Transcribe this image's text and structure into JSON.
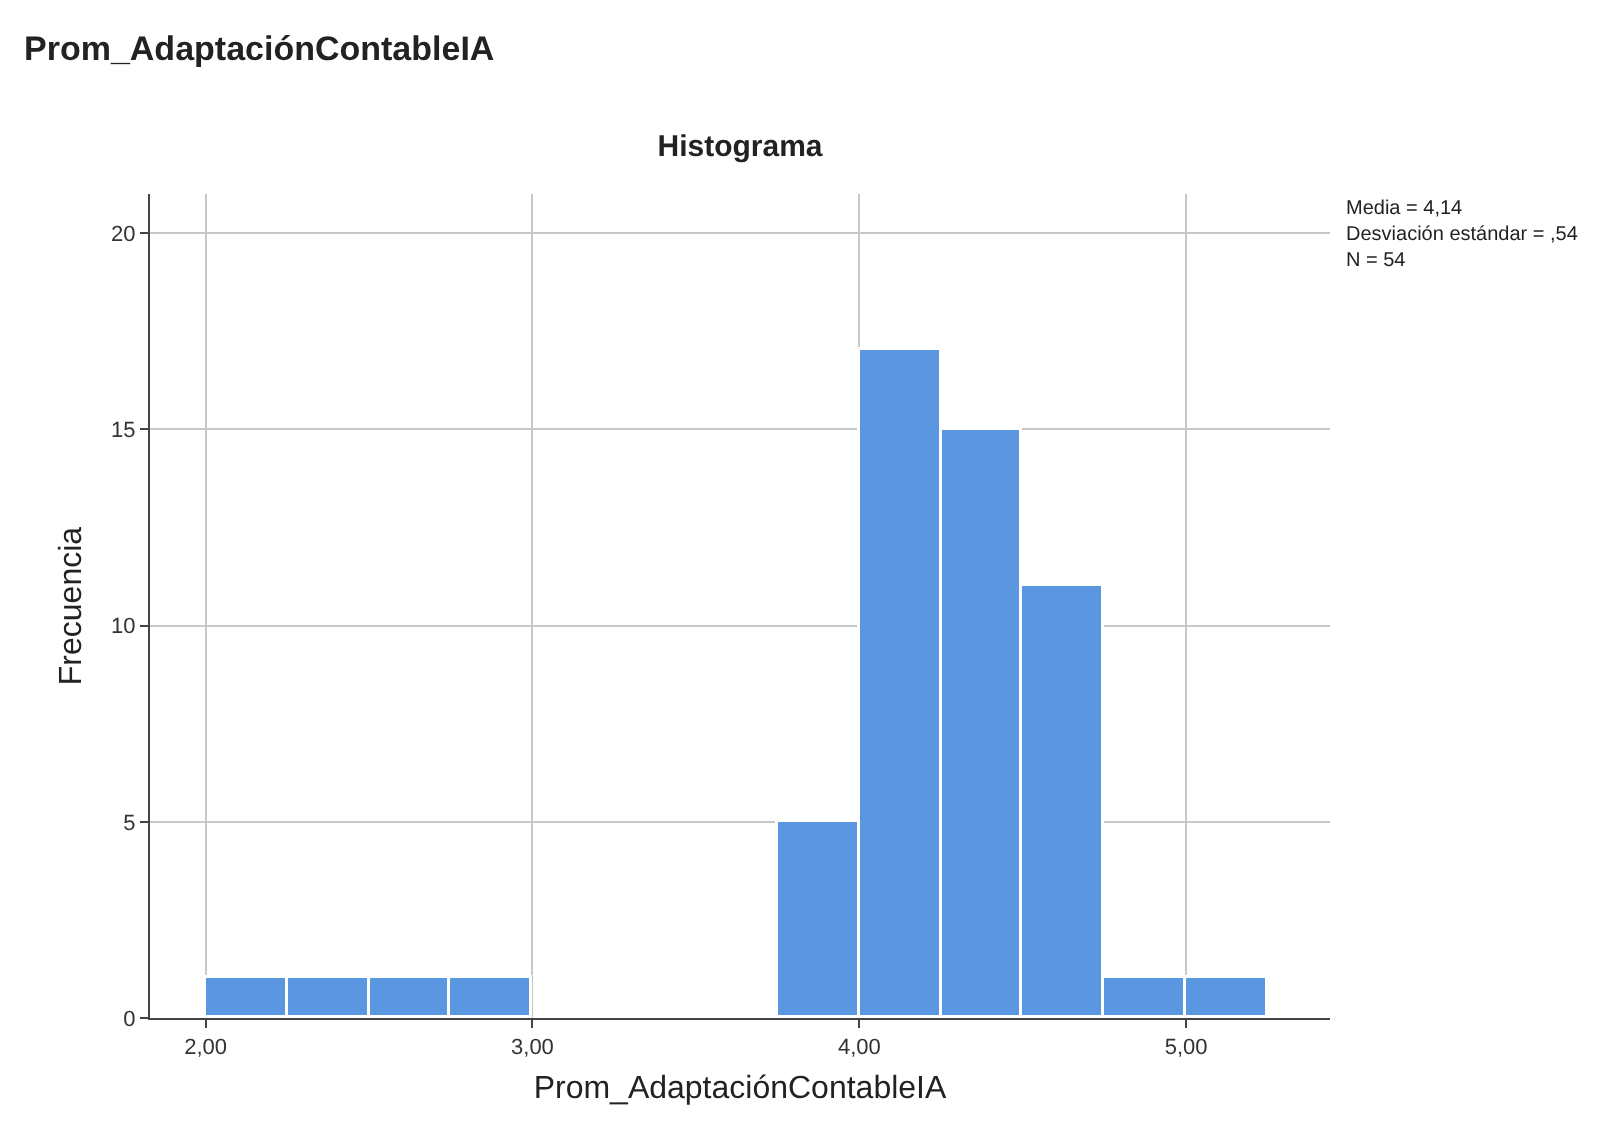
{
  "chart_data": {
    "type": "histogram",
    "title": "Histograma",
    "subtitle": "Prom_AdaptaciónContableIA",
    "xlabel": "Prom_AdaptaciónContableIA",
    "ylabel": "Frecuencia",
    "bins": [
      2.0,
      2.25,
      2.5,
      2.75,
      3.0,
      3.25,
      3.5,
      3.75,
      4.0,
      4.25,
      4.5,
      4.75,
      5.0,
      5.25
    ],
    "values": [
      1,
      1,
      1,
      1,
      0,
      0,
      0,
      5,
      17,
      15,
      11,
      1,
      1
    ],
    "color": "#5b96e0",
    "xlim": [
      1.83,
      5.44
    ],
    "ylim": [
      0,
      21
    ],
    "xticks": [
      {
        "value": 2,
        "label": "2,00"
      },
      {
        "value": 3,
        "label": "3,00"
      },
      {
        "value": 4,
        "label": "4,00"
      },
      {
        "value": 5,
        "label": "5,00"
      }
    ],
    "yticks": [
      0,
      5,
      10,
      15,
      20
    ],
    "grid": true,
    "annotations": [
      "Media = 4,14",
      "Desviación estándar = ,54",
      "N = 54"
    ]
  }
}
